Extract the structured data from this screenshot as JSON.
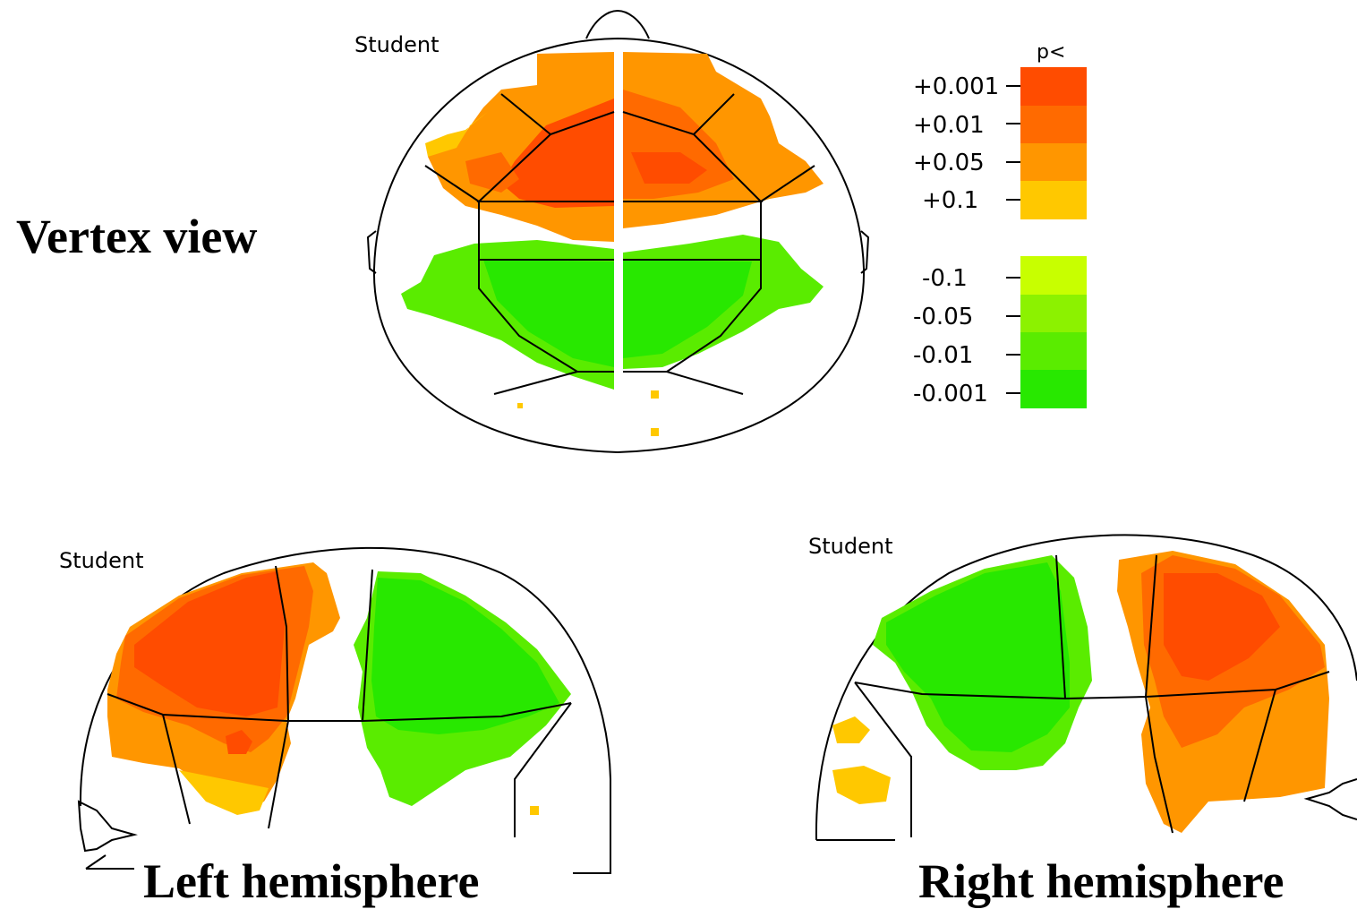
{
  "captions": {
    "vertex": "Vertex view",
    "left": "Left hemisphere",
    "right": "Right hemisphere"
  },
  "map_titles": {
    "vertex": "Student",
    "left": "Student",
    "right": "Student"
  },
  "legend": {
    "title": "p<",
    "positive": [
      {
        "label": "+0.001",
        "color": "#ff4c00"
      },
      {
        "label": "+0.01",
        "color": "#ff6a00"
      },
      {
        "label": "+0.05",
        "color": "#ff9600"
      },
      {
        "label": "+0.1",
        "color": "#ffc800"
      }
    ],
    "negative": [
      {
        "label": "-0.1",
        "color": "#c8ff00"
      },
      {
        "label": "-0.05",
        "color": "#8cf200"
      },
      {
        "label": "-0.01",
        "color": "#5aec00"
      },
      {
        "label": "-0.001",
        "color": "#28e800"
      }
    ]
  },
  "colors": {
    "red": "#ff4c00",
    "dark_orange": "#ff6a00",
    "orange": "#ff9600",
    "yellow": "#ffc800",
    "green": "#28e800",
    "mid_green": "#5aec00",
    "light_green": "#8cf200"
  }
}
